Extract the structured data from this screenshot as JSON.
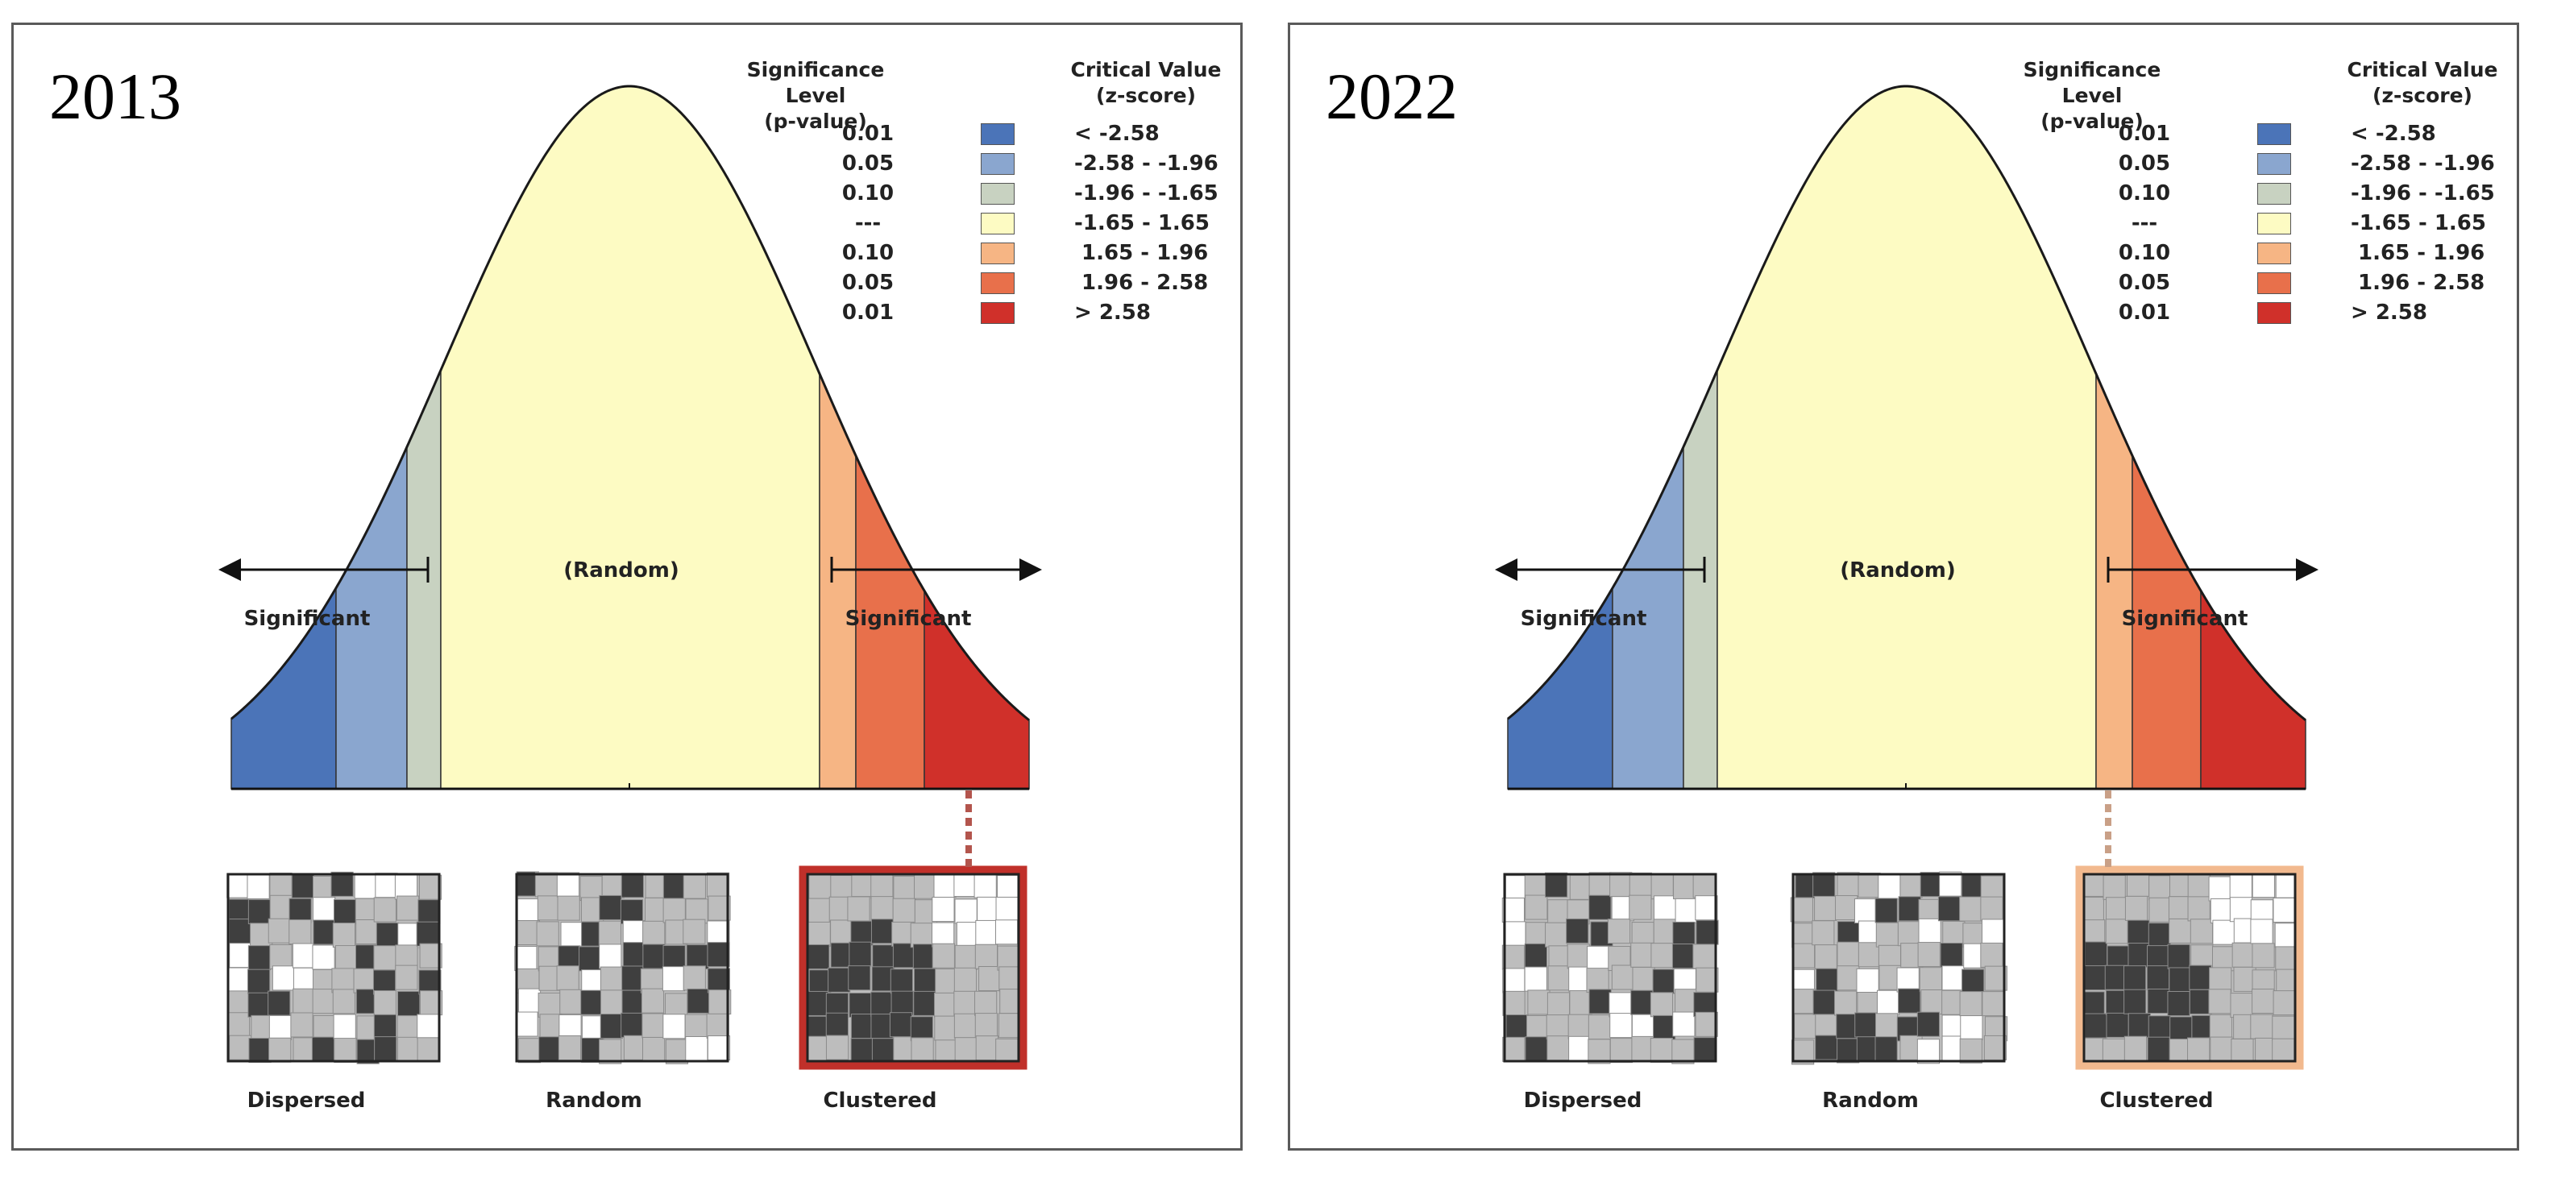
{
  "panels": [
    {
      "year": "2013",
      "highlight": "clustered",
      "frame_color": "#c0302a"
    },
    {
      "year": "2022",
      "highlight": "clustered",
      "frame_color": "#f2b98e"
    }
  ],
  "legend": {
    "p_header_line1": "Significance Level",
    "p_header_line2": "(p-value)",
    "z_header_line1": "Critical Value",
    "z_header_line2": "(z-score)",
    "rows": [
      {
        "p": "0.01",
        "z": "< -2.58",
        "color": "#4b74b8"
      },
      {
        "p": "0.05",
        "z": "-2.58 - -1.96",
        "color": "#8aa6cf"
      },
      {
        "p": "0.10",
        "z": "-1.96 - -1.65",
        "color": "#c8d2c1"
      },
      {
        "p": "---",
        "z": "-1.65 - 1.65",
        "color": "#fdfbc3"
      },
      {
        "p": "0.10",
        "z": " 1.65 - 1.96",
        "color": "#f6b584"
      },
      {
        "p": "0.05",
        "z": " 1.96 - 2.58",
        "color": "#e8704b"
      },
      {
        "p": "0.01",
        "z": "> 2.58",
        "color": "#d0302a"
      }
    ]
  },
  "curve_labels": {
    "random": "(Random)",
    "significant_left": "Significant",
    "significant_right": "Significant"
  },
  "patterns": {
    "dispersed": "Dispersed",
    "random": "Random",
    "clustered": "Clustered"
  }
}
